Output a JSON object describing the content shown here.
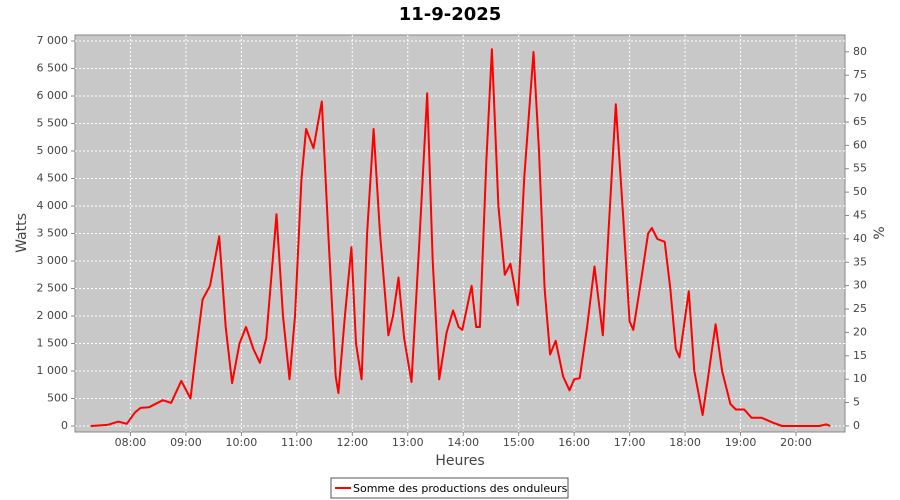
{
  "chart_data": {
    "type": "line",
    "title": "11-9-2025",
    "xlabel": "Heures",
    "ylabel": "Watts",
    "y2label": "%",
    "x": [
      "07:17",
      "07:35",
      "07:47",
      "07:56",
      "08:05",
      "08:11",
      "08:20",
      "08:35",
      "08:44",
      "08:55",
      "09:05",
      "09:12",
      "09:18",
      "09:26",
      "09:36",
      "09:43",
      "09:50",
      "09:58",
      "10:05",
      "10:13",
      "10:20",
      "10:27",
      "10:38",
      "10:45",
      "10:52",
      "10:58",
      "11:05",
      "11:10",
      "11:18",
      "11:27",
      "11:34",
      "11:42",
      "11:45",
      "11:52",
      "11:59",
      "12:04",
      "12:10",
      "12:16",
      "12:23",
      "12:30",
      "12:39",
      "12:44",
      "12:50",
      "12:56",
      "13:04",
      "13:12",
      "13:21",
      "13:27",
      "13:34",
      "13:42",
      "13:49",
      "13:55",
      "13:59",
      "14:09",
      "14:14",
      "14:18",
      "14:25",
      "14:31",
      "14:38",
      "14:45",
      "14:51",
      "14:59",
      "15:06",
      "15:16",
      "15:22",
      "15:28",
      "15:34",
      "15:40",
      "15:48",
      "15:55",
      "16:00",
      "16:06",
      "16:14",
      "16:22",
      "16:31",
      "16:37",
      "16:45",
      "16:53",
      "17:00",
      "17:04",
      "17:12",
      "17:20",
      "17:24",
      "17:30",
      "17:38",
      "17:44",
      "17:50",
      "17:54",
      "18:04",
      "18:10",
      "18:19",
      "18:25",
      "18:33",
      "18:40",
      "18:49",
      "18:55",
      "19:04",
      "19:12",
      "19:23",
      "19:35",
      "19:45",
      "20:25",
      "20:33",
      "20:37"
    ],
    "series": [
      {
        "name": "Somme des productions des onduleurs",
        "color": "#ff0000",
        "values": [
          0,
          20,
          80,
          40,
          250,
          330,
          340,
          470,
          420,
          820,
          500,
          1500,
          2300,
          2550,
          3450,
          1800,
          780,
          1500,
          1800,
          1400,
          1150,
          1600,
          3850,
          2000,
          850,
          2000,
          4500,
          5400,
          5050,
          5900,
          3500,
          900,
          600,
          2000,
          3250,
          1500,
          850,
          3500,
          5400,
          3500,
          1650,
          2000,
          2700,
          1600,
          800,
          3200,
          6050,
          3000,
          850,
          1700,
          2100,
          1800,
          1750,
          2550,
          1800,
          1800,
          4800,
          6850,
          4000,
          2750,
          2950,
          2200,
          4500,
          6800,
          5000,
          2500,
          1300,
          1550,
          900,
          650,
          850,
          870,
          1800,
          2900,
          1650,
          3500,
          5850,
          3800,
          1900,
          1750,
          2600,
          3500,
          3600,
          3400,
          3350,
          2500,
          1400,
          1250,
          2450,
          1000,
          200,
          900,
          1850,
          1000,
          400,
          300,
          300,
          150,
          150,
          60,
          0,
          0,
          30,
          0
        ]
      }
    ],
    "xlim": [
      "07:00",
      "20:53"
    ],
    "xticks": [
      "08:00",
      "09:00",
      "10:00",
      "11:00",
      "12:00",
      "13:00",
      "14:00",
      "15:00",
      "16:00",
      "17:00",
      "18:00",
      "19:00",
      "20:00"
    ],
    "ylim": [
      -109,
      7109
    ],
    "yticks": [
      0,
      500,
      {
        "value": 1000,
        "label": "1 000"
      },
      {
        "value": 1500,
        "label": "1 500"
      },
      {
        "value": 2000,
        "label": "2 000"
      },
      {
        "value": 2500,
        "label": "2 500"
      },
      {
        "value": 3000,
        "label": "3 000"
      },
      {
        "value": 3500,
        "label": "3 500"
      },
      {
        "value": 4000,
        "label": "4 000"
      },
      {
        "value": 4500,
        "label": "4 500"
      },
      {
        "value": 5000,
        "label": "5 000"
      },
      {
        "value": 5500,
        "label": "5 500"
      },
      {
        "value": 6000,
        "label": "6 000"
      },
      {
        "value": 6500,
        "label": "6 500"
      },
      {
        "value": 7000,
        "label": "7 000"
      }
    ],
    "y2lim": [
      -1.3,
      83.6
    ],
    "y2ticks": [
      0,
      5,
      10,
      15,
      20,
      25,
      30,
      35,
      40,
      45,
      50,
      55,
      60,
      65,
      70,
      75,
      80
    ],
    "grid": true,
    "legend": "bottom"
  }
}
